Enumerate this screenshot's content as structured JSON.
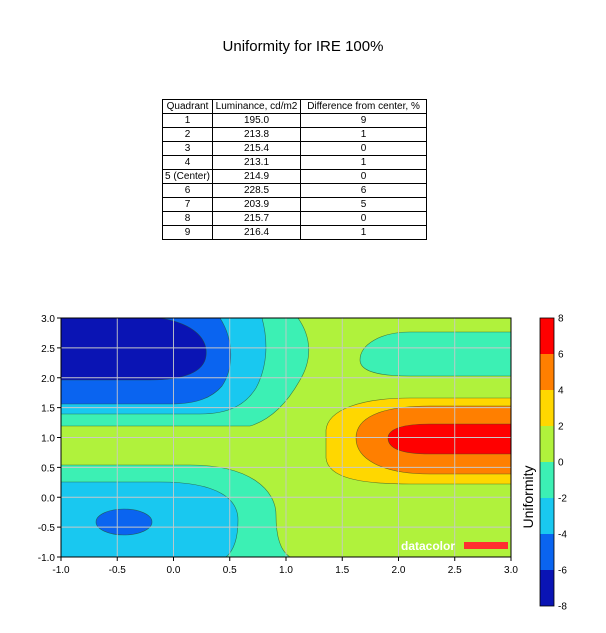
{
  "title": "Uniformity for IRE 100%",
  "table": {
    "headers": [
      "Quadrant",
      "Luminance, cd/m2",
      "Difference from center, %"
    ],
    "rows": [
      [
        "1",
        "195.0",
        "9"
      ],
      [
        "2",
        "213.8",
        "1"
      ],
      [
        "3",
        "215.4",
        "0"
      ],
      [
        "4",
        "213.1",
        "1"
      ],
      [
        "5 (Center)",
        "214.9",
        "0"
      ],
      [
        "6",
        "228.5",
        "6"
      ],
      [
        "7",
        "203.9",
        "5"
      ],
      [
        "8",
        "215.7",
        "0"
      ],
      [
        "9",
        "216.4",
        "1"
      ]
    ]
  },
  "chart_data": {
    "type": "heatmap",
    "subtype": "filled-contour",
    "xlim": [
      -1.0,
      3.0
    ],
    "ylim": [
      -1.0,
      3.0
    ],
    "x_ticks": [
      "-1.0",
      "-0.5",
      "0.0",
      "0.5",
      "1.0",
      "1.5",
      "2.0",
      "2.5",
      "3.0"
    ],
    "y_ticks": [
      "3.0",
      "2.5",
      "2.0",
      "1.5",
      "1.0",
      "0.5",
      "0.0",
      "-0.5",
      "-1.0"
    ],
    "grid": true,
    "colorbar": {
      "label": "Uniformity",
      "range": [
        -8,
        8
      ],
      "ticks": [
        "8",
        "6",
        "4",
        "2",
        "0",
        "-2",
        "-4",
        "-6",
        "-8"
      ],
      "levels": [
        {
          "from": 6,
          "to": 8,
          "color": "#ff0000"
        },
        {
          "from": 4,
          "to": 6,
          "color": "#ff7f00"
        },
        {
          "from": 2,
          "to": 4,
          "color": "#ffd700"
        },
        {
          "from": 0,
          "to": 2,
          "color": "#b0f23c"
        },
        {
          "from": -2,
          "to": 0,
          "color": "#3cf0b4"
        },
        {
          "from": -4,
          "to": -2,
          "color": "#19c8f0"
        },
        {
          "from": -6,
          "to": -4,
          "color": "#0a64f0"
        },
        {
          "from": -8,
          "to": -6,
          "color": "#0a14b4"
        }
      ]
    },
    "regions": [
      {
        "level": -8,
        "cx": -0.5,
        "cy": 2.5,
        "value": -8
      },
      {
        "level": -6,
        "cx": -0.5,
        "cy": -0.2,
        "value": -6
      },
      {
        "level": 8,
        "cx": 2.5,
        "cy": 1.0,
        "value": 7
      },
      {
        "level": 0,
        "cx": 2.0,
        "cy": 2.5,
        "value": 0
      }
    ],
    "watermark": "datacolor"
  }
}
